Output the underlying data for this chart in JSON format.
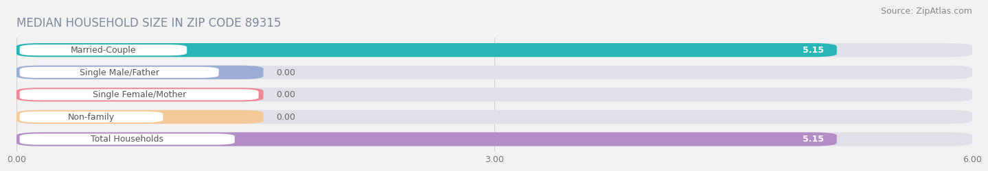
{
  "title": "MEDIAN HOUSEHOLD SIZE IN ZIP CODE 89315",
  "source": "Source: ZipAtlas.com",
  "categories": [
    "Married-Couple",
    "Single Male/Father",
    "Single Female/Mother",
    "Non-family",
    "Total Households"
  ],
  "values": [
    5.15,
    0.0,
    0.0,
    0.0,
    5.15
  ],
  "bar_colors": [
    "#27b5b5",
    "#9badd4",
    "#f08898",
    "#f5c898",
    "#b48cc8"
  ],
  "label_bg_color": "#ffffff",
  "background_color": "#f2f2f2",
  "bar_bg_color": "#e0e0e8",
  "xlim": [
    0,
    6.0
  ],
  "xticks": [
    0.0,
    3.0,
    6.0
  ],
  "xtick_labels": [
    "0.00",
    "3.00",
    "6.00"
  ],
  "value_label_color": "#ffffff",
  "zero_label_color": "#666666",
  "title_color": "#7a8a9a",
  "source_color": "#888888",
  "title_fontsize": 12,
  "source_fontsize": 9,
  "bar_height": 0.62,
  "bar_label_fontsize": 9,
  "value_fontsize": 9,
  "label_box_widths": [
    1.05,
    1.25,
    1.5,
    0.9,
    1.35
  ],
  "zero_bar_widths": [
    0.0,
    1.55,
    1.55,
    1.55,
    0.0
  ]
}
